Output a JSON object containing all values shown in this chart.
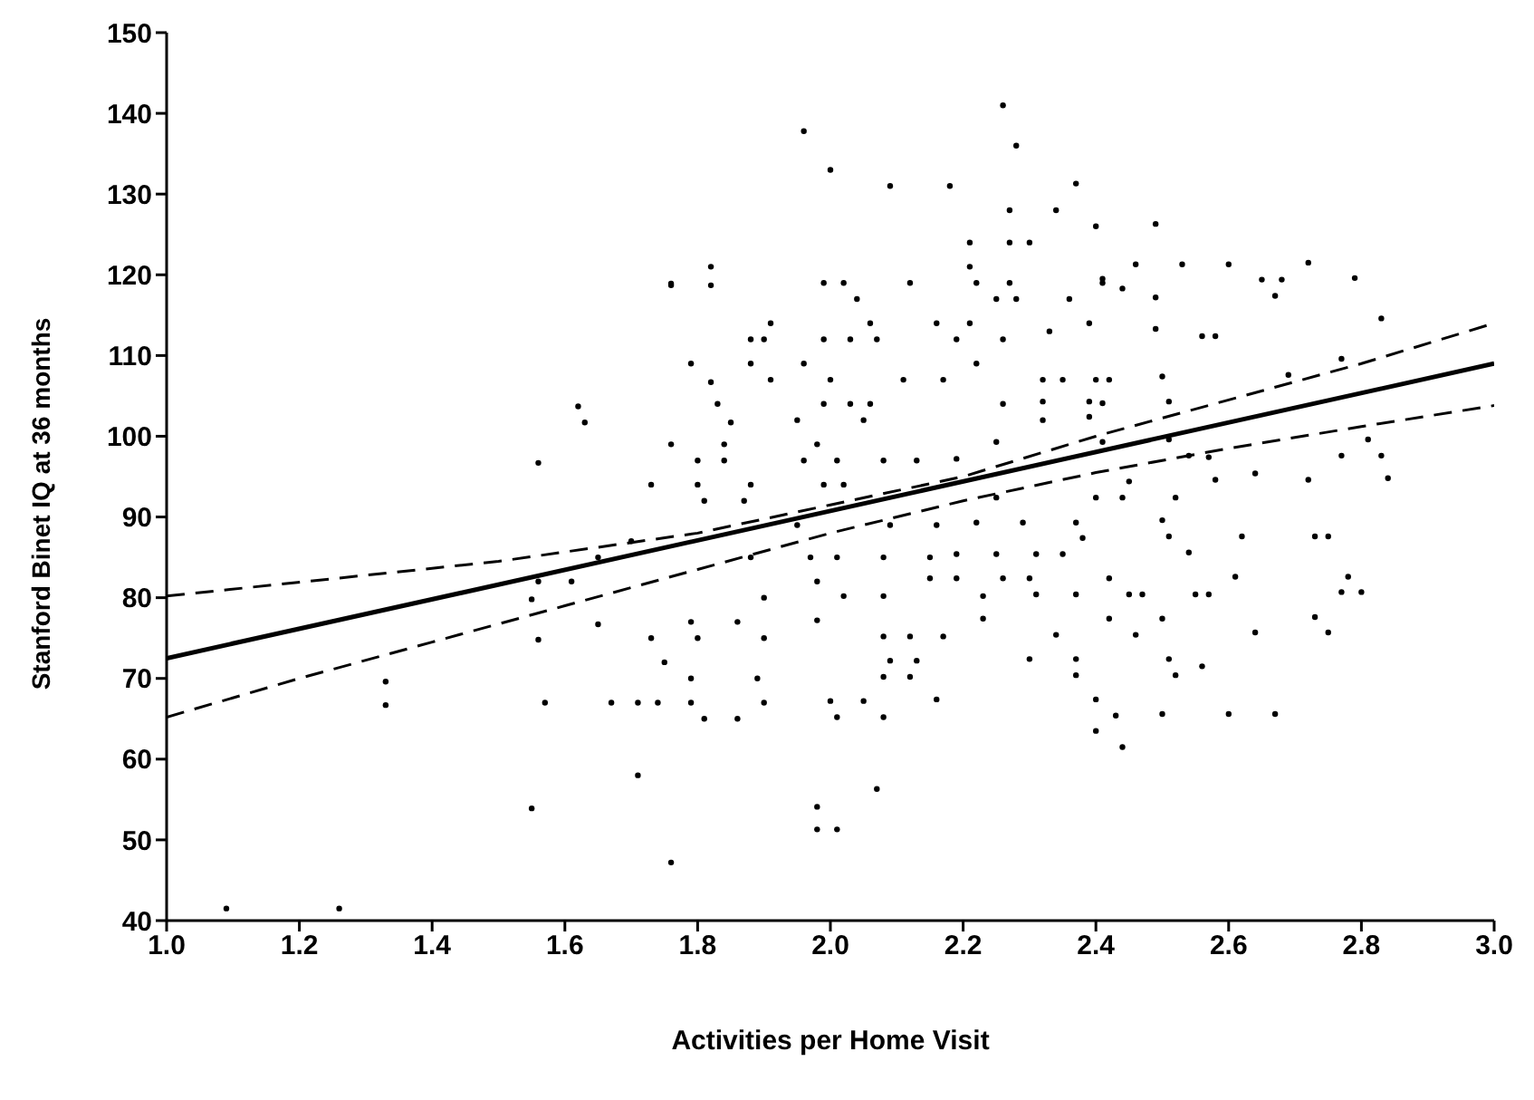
{
  "chart_data": {
    "type": "scatter",
    "xlabel": "Activities per Home Visit",
    "ylabel": "Stanford Binet IQ at 36 months",
    "xlim": [
      1,
      3
    ],
    "ylim": [
      40,
      150
    ],
    "xticks": [
      {
        "value": 1,
        "label": "1.0"
      },
      {
        "value": 1.2,
        "label": "1.2"
      },
      {
        "value": 1.4,
        "label": "1.4"
      },
      {
        "value": 1.6,
        "label": "1.6"
      },
      {
        "value": 1.8,
        "label": "1.8"
      },
      {
        "value": 2,
        "label": "2.0"
      },
      {
        "value": 2.2,
        "label": "2.2"
      },
      {
        "value": 2.4,
        "label": "2.4"
      },
      {
        "value": 2.6,
        "label": "2.6"
      },
      {
        "value": 2.8,
        "label": "2.8"
      },
      {
        "value": 3,
        "label": "3.0"
      }
    ],
    "yticks": [
      40,
      50,
      60,
      70,
      80,
      90,
      100,
      110,
      120,
      130,
      140,
      150
    ],
    "grid": false,
    "legend": false,
    "series": [
      {
        "marker": "circle",
        "color": "#000000",
        "x": [
          1.09,
          1.26,
          1.33,
          1.33,
          1.55,
          1.56,
          1.62,
          1.63,
          1.76,
          1.56,
          1.55,
          1.56,
          1.57,
          1.61,
          1.65,
          1.67,
          1.71,
          1.74,
          1.7,
          1.65,
          1.73,
          1.76,
          1.73,
          1.75,
          1.71,
          1.76,
          1.96,
          2.0,
          2.09,
          2.18,
          2.26,
          2.28,
          2.37,
          2.27,
          2.34,
          2.4,
          2.21,
          2.27,
          2.3,
          2.21,
          1.76,
          1.82,
          1.82,
          1.99,
          2.02,
          2.12,
          2.22,
          2.27,
          2.41,
          2.04,
          2.25,
          2.28,
          2.36,
          1.91,
          2.06,
          2.16,
          2.21,
          2.39,
          2.33,
          1.88,
          1.9,
          1.99,
          2.03,
          2.07,
          2.19,
          2.26,
          1.79,
          1.82,
          1.88,
          1.96,
          1.91,
          2.0,
          2.11,
          2.17,
          2.22,
          2.32,
          2.35,
          2.4,
          1.83,
          1.99,
          2.03,
          2.06,
          2.26,
          2.32,
          2.39,
          1.85,
          1.95,
          2.05,
          2.32,
          2.39,
          1.84,
          1.98,
          2.25,
          1.8,
          1.84,
          1.96,
          2.01,
          2.08,
          2.13,
          2.19,
          1.8,
          1.88,
          1.99,
          2.02,
          1.81,
          1.87,
          2.25,
          2.4,
          1.95,
          2.09,
          2.16,
          2.22,
          2.29,
          2.37,
          1.88,
          1.97,
          2.01,
          2.08,
          2.15,
          2.19,
          2.25,
          2.31,
          2.35,
          2.38,
          1.98,
          2.15,
          2.19,
          2.26,
          2.3,
          2.42,
          1.9,
          2.02,
          2.08,
          2.23,
          2.31,
          2.37,
          1.79,
          1.86,
          1.8,
          1.9,
          1.98,
          2.08,
          2.12,
          2.17,
          2.23,
          2.34,
          2.42,
          2.09,
          2.13,
          2.3,
          2.37,
          1.79,
          1.89,
          2.08,
          2.12,
          2.37,
          1.79,
          1.9,
          2.0,
          2.05,
          2.16,
          2.4,
          1.81,
          1.86,
          2.01,
          2.08,
          2.43,
          2.4,
          2.44,
          2.07,
          1.98,
          1.98,
          2.01,
          2.49,
          2.46,
          2.53,
          2.6,
          2.72,
          2.65,
          2.68,
          2.79,
          2.41,
          2.44,
          2.67,
          2.49,
          2.83,
          2.49,
          2.56,
          2.58,
          2.77,
          2.69,
          2.5,
          2.42,
          2.51,
          2.41,
          2.41,
          2.51,
          2.81,
          2.54,
          2.57,
          2.77,
          2.83,
          2.64,
          2.58,
          2.72,
          2.84,
          2.45,
          2.44,
          2.52,
          2.5,
          2.51,
          2.62,
          2.73,
          2.75,
          2.54,
          2.61,
          2.78,
          2.45,
          2.47,
          2.55,
          2.57,
          2.77,
          2.8,
          2.5,
          2.73,
          2.46,
          2.64,
          2.75,
          2.51,
          2.56,
          2.52,
          2.5,
          2.6,
          2.67
        ],
        "values": [
          41.5,
          41.5,
          69.6,
          66.7,
          53.9,
          96.7,
          103.7,
          101.7,
          118.9,
          82,
          79.8,
          74.8,
          67,
          82,
          76.7,
          67,
          67,
          67,
          87,
          85,
          94,
          99,
          75,
          72,
          58,
          47.2,
          137.8,
          133,
          131,
          131,
          141,
          136,
          131.3,
          128,
          128,
          126,
          124,
          124,
          124,
          121,
          118.7,
          121,
          118.7,
          119,
          119,
          119,
          119,
          119,
          119,
          117,
          117,
          117,
          117,
          114,
          114,
          114,
          114,
          114,
          113,
          112,
          112,
          112,
          112,
          112,
          112,
          112,
          109,
          106.7,
          109,
          109,
          107,
          107,
          107,
          107,
          109,
          107,
          107,
          107,
          104,
          104,
          104,
          104,
          104,
          104.3,
          104.3,
          101.7,
          102,
          102,
          102,
          102.4,
          99,
          99,
          99.3,
          97,
          97,
          97,
          97,
          97,
          97,
          97.2,
          94,
          94,
          94,
          94,
          92,
          92,
          92.4,
          92.4,
          89,
          89,
          89,
          89.3,
          89.3,
          89.3,
          85,
          85,
          85,
          85,
          85,
          85.4,
          85.4,
          85.4,
          85.4,
          87.4,
          82,
          82.4,
          82.4,
          82.4,
          82.4,
          82.4,
          80,
          80.2,
          80.2,
          80.2,
          80.4,
          80.4,
          77,
          77,
          75,
          75,
          77.2,
          75.2,
          75.2,
          75.2,
          77.4,
          75.4,
          77.4,
          72.2,
          72.2,
          72.4,
          72.4,
          70,
          70,
          70.2,
          70.2,
          70.4,
          67,
          67,
          67.2,
          67.2,
          67.4,
          67.4,
          65,
          65,
          65.2,
          65.2,
          65.4,
          63.5,
          61.5,
          56.3,
          54.1,
          51.3,
          51.3,
          126.3,
          121.3,
          121.3,
          121.3,
          121.5,
          119.4,
          119.4,
          119.6,
          119.5,
          118.3,
          117.4,
          117.2,
          114.6,
          113.3,
          112.4,
          112.4,
          109.6,
          107.6,
          107.4,
          107,
          104.3,
          104.1,
          99.3,
          99.6,
          99.6,
          97.6,
          97.4,
          97.6,
          97.6,
          95.4,
          94.6,
          94.6,
          94.8,
          94.4,
          92.4,
          92.4,
          89.6,
          87.6,
          87.6,
          87.6,
          87.6,
          85.6,
          82.6,
          82.6,
          80.4,
          80.4,
          80.4,
          80.4,
          80.7,
          80.7,
          77.4,
          77.6,
          75.4,
          75.7,
          75.7,
          72.4,
          71.5,
          70.4,
          65.6,
          65.6,
          65.6
        ]
      },
      {
        "type": "line",
        "marker": "none",
        "color": "#000000",
        "line_style": "solid",
        "x": [
          1,
          3
        ],
        "values": [
          72.5,
          109
        ]
      },
      {
        "type": "line",
        "marker": "none",
        "color": "#000000",
        "line_style": "dashed",
        "x": [
          1,
          1.5,
          1.8,
          2,
          2.2,
          2.4,
          2.6,
          2.8,
          3
        ],
        "values": [
          80.2,
          84.5,
          88,
          91.5,
          95,
          100,
          104.5,
          109,
          114
        ]
      },
      {
        "type": "line",
        "marker": "none",
        "color": "#000000",
        "line_style": "dashed",
        "x": [
          1,
          1.2,
          1.4,
          1.6,
          1.8,
          2,
          2.2,
          2.4,
          2.6,
          2.8,
          3
        ],
        "values": [
          65.2,
          70,
          74.5,
          79,
          83.5,
          88,
          92,
          95.5,
          98.5,
          101.2,
          103.8
        ]
      }
    ]
  }
}
